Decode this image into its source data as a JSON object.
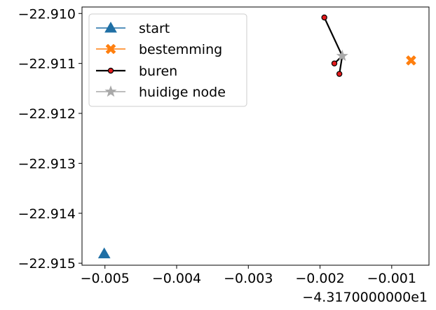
{
  "chart_data": {
    "type": "scatter",
    "x_offset_label": "−4.3170000000e1",
    "xlim": [
      -0.00532,
      -0.00048
    ],
    "ylim": [
      -22.91504,
      -22.90987
    ],
    "x_ticks": [
      -0.005,
      -0.004,
      -0.003,
      -0.002,
      -0.001
    ],
    "x_tick_labels": [
      "−0.005",
      "−0.004",
      "−0.003",
      "−0.002",
      "−0.001"
    ],
    "y_ticks": [
      -22.91,
      -22.911,
      -22.912,
      -22.913,
      -22.914,
      -22.915
    ],
    "y_tick_labels": [
      "−22.910",
      "−22.911",
      "−22.912",
      "−22.913",
      "−22.914",
      "−22.915"
    ],
    "grid": false,
    "legend_position": "top-left",
    "series": [
      {
        "name": "start",
        "marker": "triangle",
        "color": "#1f6fa5",
        "points": [
          [
            -0.00501,
            -22.91481
          ]
        ]
      },
      {
        "name": "bestemming",
        "marker": "x",
        "color": "#ff7f0e",
        "points": [
          [
            -0.00073,
            -22.91094
          ]
        ]
      },
      {
        "name": "buren",
        "marker": "circle",
        "color": "#000000",
        "fill": "#e41a1c",
        "points": [
          [
            -0.00194,
            -22.91008
          ],
          [
            -0.0018,
            -22.911
          ],
          [
            -0.00173,
            -22.91121
          ]
        ],
        "lines_to": [
          -0.00169,
          -22.91085
        ]
      },
      {
        "name": "huidige node",
        "marker": "star",
        "color": "#a9a9a9",
        "points": [
          [
            -0.00169,
            -22.91085
          ]
        ]
      }
    ]
  }
}
